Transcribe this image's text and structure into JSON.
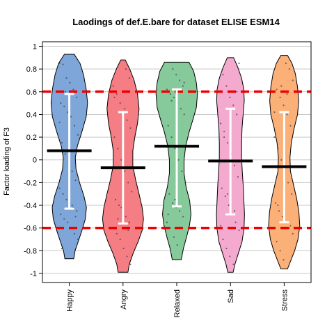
{
  "chart_data": {
    "type": "violin",
    "title": "Laodings of def.E.bare for dataset ELISE ESM14",
    "ylabel": "Factor loading of F3",
    "xlabel": "",
    "ylim": [
      -1.08,
      1.04
    ],
    "yticks": [
      1,
      0.8,
      0.6,
      0.4,
      0.2,
      0,
      -0.2,
      -0.4,
      -0.6,
      -0.8,
      -1
    ],
    "ytick_labels": [
      "1",
      "0.8",
      "0.6",
      "0.4",
      "0.2",
      "0",
      "-0.2",
      "-0.4",
      "-0.6",
      "-0.8",
      "-1"
    ],
    "grid": "horizontal",
    "reference_lines": [
      0.6,
      -0.6
    ],
    "reference_line_color": "#ee0000",
    "categories": [
      "Happy",
      "Angry",
      "Relaxed",
      "Sad",
      "Stress"
    ],
    "colors": [
      "#7ea6d8",
      "#f47e84",
      "#86c99a",
      "#f4a9cf",
      "#fbb078"
    ],
    "series": [
      {
        "category": "Happy",
        "mean": 0.08,
        "whisker_low": -0.43,
        "whisker_high": 0.58,
        "min": -0.87,
        "max": 0.93,
        "density": [
          [
            0.93,
            0.22
          ],
          [
            0.85,
            0.48
          ],
          [
            0.75,
            0.64
          ],
          [
            0.62,
            0.76
          ],
          [
            0.5,
            0.82
          ],
          [
            0.38,
            0.76
          ],
          [
            0.25,
            0.57
          ],
          [
            0.12,
            0.36
          ],
          [
            0.02,
            0.27
          ],
          [
            -0.08,
            0.3
          ],
          [
            -0.2,
            0.46
          ],
          [
            -0.32,
            0.66
          ],
          [
            -0.42,
            0.77
          ],
          [
            -0.52,
            0.72
          ],
          [
            -0.62,
            0.57
          ],
          [
            -0.72,
            0.4
          ],
          [
            -0.8,
            0.26
          ],
          [
            -0.87,
            0.2
          ]
        ]
      },
      {
        "category": "Angry",
        "mean": -0.07,
        "whisker_low": -0.56,
        "whisker_high": 0.42,
        "min": -0.99,
        "max": 0.88,
        "density": [
          [
            0.88,
            0.1
          ],
          [
            0.8,
            0.3
          ],
          [
            0.7,
            0.5
          ],
          [
            0.58,
            0.65
          ],
          [
            0.45,
            0.72
          ],
          [
            0.32,
            0.65
          ],
          [
            0.2,
            0.53
          ],
          [
            0.08,
            0.44
          ],
          [
            -0.05,
            0.44
          ],
          [
            -0.18,
            0.57
          ],
          [
            -0.3,
            0.72
          ],
          [
            -0.42,
            0.86
          ],
          [
            -0.52,
            0.92
          ],
          [
            -0.62,
            0.86
          ],
          [
            -0.72,
            0.68
          ],
          [
            -0.82,
            0.46
          ],
          [
            -0.92,
            0.28
          ],
          [
            -0.99,
            0.22
          ]
        ]
      },
      {
        "category": "Relaxed",
        "mean": 0.12,
        "whisker_low": -0.41,
        "whisker_high": 0.62,
        "min": -0.88,
        "max": 0.86,
        "density": [
          [
            0.86,
            0.55
          ],
          [
            0.78,
            0.76
          ],
          [
            0.68,
            0.88
          ],
          [
            0.58,
            0.93
          ],
          [
            0.46,
            0.88
          ],
          [
            0.35,
            0.72
          ],
          [
            0.24,
            0.55
          ],
          [
            0.12,
            0.4
          ],
          [
            0.0,
            0.33
          ],
          [
            -0.12,
            0.33
          ],
          [
            -0.24,
            0.42
          ],
          [
            -0.36,
            0.58
          ],
          [
            -0.48,
            0.64
          ],
          [
            -0.58,
            0.57
          ],
          [
            -0.68,
            0.44
          ],
          [
            -0.78,
            0.3
          ],
          [
            -0.88,
            0.2
          ]
        ]
      },
      {
        "category": "Sad",
        "mean": -0.01,
        "whisker_low": -0.48,
        "whisker_high": 0.45,
        "min": -0.99,
        "max": 0.9,
        "density": [
          [
            0.9,
            0.14
          ],
          [
            0.82,
            0.32
          ],
          [
            0.72,
            0.5
          ],
          [
            0.62,
            0.6
          ],
          [
            0.52,
            0.62
          ],
          [
            0.4,
            0.57
          ],
          [
            0.28,
            0.52
          ],
          [
            0.15,
            0.5
          ],
          [
            0.02,
            0.5
          ],
          [
            -0.1,
            0.53
          ],
          [
            -0.22,
            0.57
          ],
          [
            -0.35,
            0.6
          ],
          [
            -0.48,
            0.63
          ],
          [
            -0.6,
            0.61
          ],
          [
            -0.72,
            0.52
          ],
          [
            -0.82,
            0.36
          ],
          [
            -0.92,
            0.2
          ],
          [
            -0.99,
            0.12
          ]
        ]
      },
      {
        "category": "Stress",
        "mean": -0.06,
        "whisker_low": -0.55,
        "whisker_high": 0.42,
        "min": -0.96,
        "max": 0.92,
        "density": [
          [
            0.92,
            0.15
          ],
          [
            0.85,
            0.35
          ],
          [
            0.76,
            0.5
          ],
          [
            0.64,
            0.6
          ],
          [
            0.52,
            0.65
          ],
          [
            0.4,
            0.6
          ],
          [
            0.28,
            0.45
          ],
          [
            0.15,
            0.32
          ],
          [
            0.02,
            0.26
          ],
          [
            -0.1,
            0.28
          ],
          [
            -0.22,
            0.42
          ],
          [
            -0.34,
            0.56
          ],
          [
            -0.46,
            0.66
          ],
          [
            -0.58,
            0.7
          ],
          [
            -0.7,
            0.62
          ],
          [
            -0.8,
            0.47
          ],
          [
            -0.9,
            0.27
          ],
          [
            -0.96,
            0.15
          ]
        ]
      }
    ],
    "points": [
      [
        0.85,
        0.84,
        0.72,
        0.68,
        0.62,
        0.55,
        0.5,
        0.47,
        0.42,
        0.38,
        0.3,
        0.22,
        0.15,
        0.05,
        -0.02,
        -0.1,
        -0.18,
        -0.25,
        -0.3,
        -0.35,
        -0.38,
        -0.42,
        -0.45,
        -0.48,
        -0.52,
        -0.55,
        -0.6,
        -0.65,
        -0.7,
        -0.78,
        0.6,
        0.44,
        -0.4,
        -0.5,
        0.33
      ],
      [
        0.8,
        0.72,
        0.65,
        0.58,
        0.5,
        0.42,
        0.35,
        0.28,
        0.2,
        0.1,
        0.0,
        -0.1,
        -0.2,
        -0.28,
        -0.35,
        -0.4,
        -0.45,
        -0.5,
        -0.55,
        -0.6,
        -0.65,
        -0.7,
        -0.78,
        -0.85,
        -0.92,
        0.55,
        -0.52,
        -0.42,
        0.45,
        -0.62
      ],
      [
        0.8,
        0.75,
        0.7,
        0.65,
        0.62,
        0.58,
        0.55,
        0.5,
        0.45,
        0.4,
        0.3,
        0.2,
        0.1,
        0.0,
        -0.1,
        -0.2,
        -0.3,
        -0.38,
        -0.42,
        -0.45,
        -0.5,
        -0.55,
        -0.6,
        -0.68,
        -0.75,
        0.6,
        0.68,
        -0.48,
        0.52,
        -0.35
      ],
      [
        0.85,
        0.75,
        0.65,
        0.55,
        0.48,
        0.4,
        0.32,
        0.25,
        0.15,
        0.05,
        -0.05,
        -0.15,
        -0.25,
        -0.32,
        -0.4,
        -0.48,
        -0.55,
        -0.62,
        -0.7,
        -0.78,
        -0.85,
        -0.92,
        0.6,
        -0.58,
        0.2,
        -0.3,
        0.45,
        -0.45
      ],
      [
        0.85,
        0.8,
        0.7,
        0.62,
        0.55,
        0.48,
        0.4,
        0.3,
        0.2,
        0.1,
        0.0,
        -0.1,
        -0.2,
        -0.3,
        -0.38,
        -0.45,
        -0.5,
        -0.55,
        -0.6,
        -0.65,
        -0.72,
        -0.8,
        -0.88,
        0.58,
        -0.58,
        0.42,
        -0.4,
        0.65
      ]
    ]
  }
}
